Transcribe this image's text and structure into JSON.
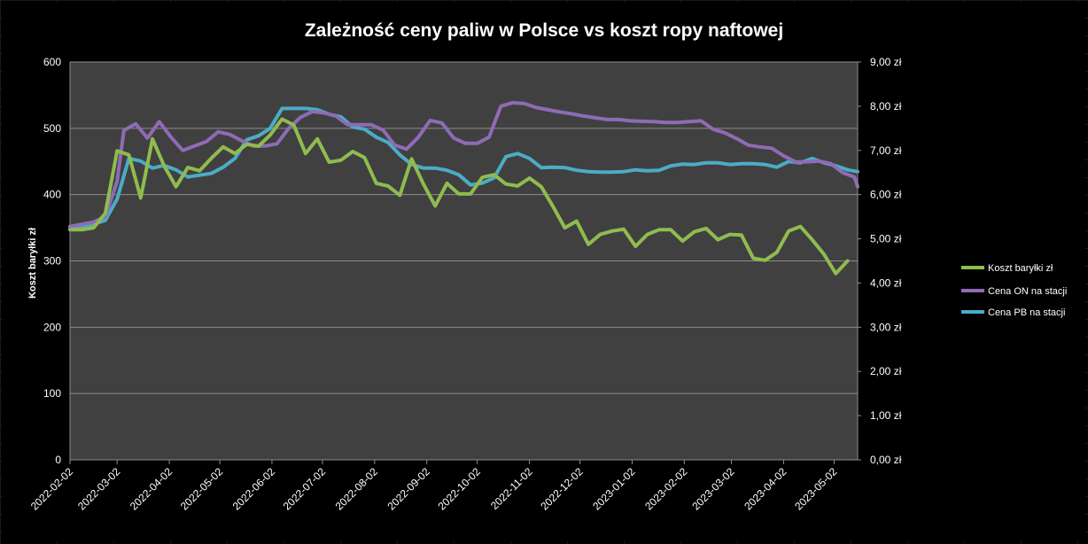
{
  "colors": {
    "plot_background": "#404040",
    "gridline": "#8c8c8c",
    "text": "#ffffff",
    "series_brent": "#8fbc4f",
    "series_on": "#8e6bb5",
    "series_pb": "#4bacc6"
  },
  "chart_data": {
    "type": "line",
    "title": "Zależność ceny paliw w Polsce vs koszt ropy naftowej",
    "ylabel_left": "Koszt baryłki zł",
    "ylim_left": [
      0,
      600
    ],
    "yticks_left": [
      "0",
      "100",
      "200",
      "300",
      "400",
      "500",
      "600"
    ],
    "ylim_right": [
      0,
      9
    ],
    "yticks_right": [
      "0,00 zł",
      "1,00 zł",
      "2,00 zł",
      "3,00 zł",
      "4,00 zł",
      "5,00 zł",
      "6,00 zł",
      "7,00 zł",
      "8,00 zł",
      "9,00 zł"
    ],
    "x_start": "2022-02-02",
    "x_end": "2023-05-16",
    "x_ticks": [
      "2022-02-02",
      "2022-03-02",
      "2022-04-02",
      "2022-05-02",
      "2022-06-02",
      "2022-07-02",
      "2022-08-02",
      "2022-09-02",
      "2022-10-02",
      "2022-11-02",
      "2022-12-02",
      "2023-01-02",
      "2023-02-02",
      "2023-03-02",
      "2023-04-02",
      "2023-05-02"
    ],
    "legend_position": "right",
    "grid": true,
    "series": [
      {
        "name": "Koszt baryłki zł",
        "axis": "left",
        "points": [
          [
            "2022-02-02",
            347
          ],
          [
            "2022-02-09",
            347
          ],
          [
            "2022-02-16",
            350
          ],
          [
            "2022-02-23",
            372
          ],
          [
            "2022-03-02",
            466
          ],
          [
            "2022-03-09",
            460
          ],
          [
            "2022-03-16",
            395
          ],
          [
            "2022-03-23",
            484
          ],
          [
            "2022-03-30",
            443
          ],
          [
            "2022-04-06",
            412
          ],
          [
            "2022-04-13",
            441
          ],
          [
            "2022-04-20",
            436
          ],
          [
            "2022-04-27",
            455
          ],
          [
            "2022-05-04",
            472
          ],
          [
            "2022-05-11",
            462
          ],
          [
            "2022-05-18",
            476
          ],
          [
            "2022-05-25",
            473
          ],
          [
            "2022-06-01",
            490
          ],
          [
            "2022-06-08",
            514
          ],
          [
            "2022-06-15",
            505
          ],
          [
            "2022-06-22",
            462
          ],
          [
            "2022-06-29",
            484
          ],
          [
            "2022-07-06",
            449
          ],
          [
            "2022-07-13",
            452
          ],
          [
            "2022-07-20",
            465
          ],
          [
            "2022-07-27",
            456
          ],
          [
            "2022-08-03",
            417
          ],
          [
            "2022-08-10",
            413
          ],
          [
            "2022-08-17",
            399
          ],
          [
            "2022-08-24",
            454
          ],
          [
            "2022-08-31",
            416
          ],
          [
            "2022-09-07",
            383
          ],
          [
            "2022-09-14",
            417
          ],
          [
            "2022-09-21",
            401
          ],
          [
            "2022-09-28",
            401
          ],
          [
            "2022-10-05",
            426
          ],
          [
            "2022-10-12",
            430
          ],
          [
            "2022-10-19",
            416
          ],
          [
            "2022-10-26",
            413
          ],
          [
            "2022-11-02",
            425
          ],
          [
            "2022-11-09",
            412
          ],
          [
            "2022-11-16",
            382
          ],
          [
            "2022-11-23",
            350
          ],
          [
            "2022-11-30",
            360
          ],
          [
            "2022-12-07",
            325
          ],
          [
            "2022-12-14",
            340
          ],
          [
            "2022-12-21",
            345
          ],
          [
            "2022-12-28",
            348
          ],
          [
            "2023-01-04",
            322
          ],
          [
            "2023-01-11",
            340
          ],
          [
            "2023-01-18",
            347
          ],
          [
            "2023-01-25",
            347
          ],
          [
            "2023-02-01",
            330
          ],
          [
            "2023-02-08",
            344
          ],
          [
            "2023-02-15",
            349
          ],
          [
            "2023-02-22",
            332
          ],
          [
            "2023-03-01",
            340
          ],
          [
            "2023-03-08",
            339
          ],
          [
            "2023-03-15",
            304
          ],
          [
            "2023-03-22",
            301
          ],
          [
            "2023-03-29",
            313
          ],
          [
            "2023-04-05",
            345
          ],
          [
            "2023-04-12",
            352
          ],
          [
            "2023-04-19",
            332
          ],
          [
            "2023-04-26",
            310
          ],
          [
            "2023-05-03",
            281
          ],
          [
            "2023-05-10",
            300
          ]
        ]
      },
      {
        "name": "Cena ON na stacji",
        "axis": "right",
        "points": [
          [
            "2022-02-02",
            5.28
          ],
          [
            "2022-02-09",
            5.33
          ],
          [
            "2022-02-16",
            5.38
          ],
          [
            "2022-02-23",
            5.5
          ],
          [
            "2022-03-02",
            6.3
          ],
          [
            "2022-03-06",
            7.45
          ],
          [
            "2022-03-13",
            7.6
          ],
          [
            "2022-03-20",
            7.28
          ],
          [
            "2022-03-27",
            7.65
          ],
          [
            "2022-04-03",
            7.3
          ],
          [
            "2022-04-10",
            7.0
          ],
          [
            "2022-04-17",
            7.1
          ],
          [
            "2022-04-24",
            7.2
          ],
          [
            "2022-05-01",
            7.42
          ],
          [
            "2022-05-08",
            7.36
          ],
          [
            "2022-05-15",
            7.22
          ],
          [
            "2022-05-22",
            7.1
          ],
          [
            "2022-05-29",
            7.1
          ],
          [
            "2022-06-05",
            7.15
          ],
          [
            "2022-06-12",
            7.5
          ],
          [
            "2022-06-19",
            7.75
          ],
          [
            "2022-06-26",
            7.88
          ],
          [
            "2022-07-03",
            7.85
          ],
          [
            "2022-07-10",
            7.78
          ],
          [
            "2022-07-17",
            7.58
          ],
          [
            "2022-07-24",
            7.58
          ],
          [
            "2022-07-31",
            7.58
          ],
          [
            "2022-08-07",
            7.46
          ],
          [
            "2022-08-14",
            7.12
          ],
          [
            "2022-08-21",
            7.03
          ],
          [
            "2022-08-28",
            7.3
          ],
          [
            "2022-09-04",
            7.68
          ],
          [
            "2022-09-11",
            7.62
          ],
          [
            "2022-09-18",
            7.28
          ],
          [
            "2022-09-25",
            7.16
          ],
          [
            "2022-10-02",
            7.16
          ],
          [
            "2022-10-09",
            7.3
          ],
          [
            "2022-10-16",
            8.0
          ],
          [
            "2022-10-23",
            8.08
          ],
          [
            "2022-10-30",
            8.06
          ],
          [
            "2022-11-06",
            7.97
          ],
          [
            "2022-11-13",
            7.92
          ],
          [
            "2022-11-20",
            7.87
          ],
          [
            "2022-11-27",
            7.83
          ],
          [
            "2022-12-04",
            7.78
          ],
          [
            "2022-12-11",
            7.74
          ],
          [
            "2022-12-18",
            7.7
          ],
          [
            "2022-12-25",
            7.7
          ],
          [
            "2023-01-01",
            7.67
          ],
          [
            "2023-01-08",
            7.66
          ],
          [
            "2023-01-15",
            7.65
          ],
          [
            "2023-01-22",
            7.63
          ],
          [
            "2023-01-29",
            7.63
          ],
          [
            "2023-02-05",
            7.65
          ],
          [
            "2023-02-12",
            7.67
          ],
          [
            "2023-02-19",
            7.48
          ],
          [
            "2023-02-26",
            7.4
          ],
          [
            "2023-03-05",
            7.27
          ],
          [
            "2023-03-12",
            7.12
          ],
          [
            "2023-03-19",
            7.08
          ],
          [
            "2023-03-26",
            7.05
          ],
          [
            "2023-04-02",
            6.88
          ],
          [
            "2023-04-09",
            6.74
          ],
          [
            "2023-04-16",
            6.74
          ],
          [
            "2023-04-23",
            6.76
          ],
          [
            "2023-04-30",
            6.7
          ],
          [
            "2023-05-07",
            6.5
          ],
          [
            "2023-05-14",
            6.4
          ],
          [
            "2023-05-16",
            6.18
          ]
        ]
      },
      {
        "name": "Cena PB na stacji",
        "axis": "right",
        "points": [
          [
            "2022-02-02",
            5.22
          ],
          [
            "2022-02-09",
            5.27
          ],
          [
            "2022-02-16",
            5.33
          ],
          [
            "2022-02-23",
            5.42
          ],
          [
            "2022-03-02",
            5.9
          ],
          [
            "2022-03-09",
            6.82
          ],
          [
            "2022-03-16",
            6.76
          ],
          [
            "2022-03-23",
            6.6
          ],
          [
            "2022-03-30",
            6.66
          ],
          [
            "2022-04-06",
            6.56
          ],
          [
            "2022-04-13",
            6.4
          ],
          [
            "2022-04-20",
            6.44
          ],
          [
            "2022-04-27",
            6.48
          ],
          [
            "2022-05-04",
            6.62
          ],
          [
            "2022-05-11",
            6.82
          ],
          [
            "2022-05-18",
            7.24
          ],
          [
            "2022-05-25",
            7.33
          ],
          [
            "2022-06-01",
            7.5
          ],
          [
            "2022-06-08",
            7.95
          ],
          [
            "2022-06-15",
            7.95
          ],
          [
            "2022-06-22",
            7.95
          ],
          [
            "2022-06-29",
            7.92
          ],
          [
            "2022-07-06",
            7.82
          ],
          [
            "2022-07-13",
            7.76
          ],
          [
            "2022-07-20",
            7.53
          ],
          [
            "2022-07-27",
            7.48
          ],
          [
            "2022-08-03",
            7.3
          ],
          [
            "2022-08-10",
            7.18
          ],
          [
            "2022-08-17",
            6.9
          ],
          [
            "2022-08-24",
            6.68
          ],
          [
            "2022-08-31",
            6.6
          ],
          [
            "2022-09-07",
            6.6
          ],
          [
            "2022-09-14",
            6.55
          ],
          [
            "2022-09-21",
            6.45
          ],
          [
            "2022-09-28",
            6.22
          ],
          [
            "2022-10-05",
            6.26
          ],
          [
            "2022-10-12",
            6.38
          ],
          [
            "2022-10-19",
            6.86
          ],
          [
            "2022-10-26",
            6.93
          ],
          [
            "2022-11-02",
            6.82
          ],
          [
            "2022-11-09",
            6.61
          ],
          [
            "2022-11-16",
            6.62
          ],
          [
            "2022-11-23",
            6.61
          ],
          [
            "2022-11-30",
            6.55
          ],
          [
            "2022-12-07",
            6.52
          ],
          [
            "2022-12-14",
            6.51
          ],
          [
            "2022-12-21",
            6.51
          ],
          [
            "2022-12-28",
            6.52
          ],
          [
            "2023-01-04",
            6.56
          ],
          [
            "2023-01-11",
            6.54
          ],
          [
            "2023-01-18",
            6.55
          ],
          [
            "2023-01-25",
            6.65
          ],
          [
            "2023-02-01",
            6.69
          ],
          [
            "2023-02-08",
            6.68
          ],
          [
            "2023-02-15",
            6.72
          ],
          [
            "2023-02-22",
            6.72
          ],
          [
            "2023-03-01",
            6.68
          ],
          [
            "2023-03-08",
            6.7
          ],
          [
            "2023-03-15",
            6.7
          ],
          [
            "2023-03-22",
            6.68
          ],
          [
            "2023-03-29",
            6.62
          ],
          [
            "2023-04-05",
            6.75
          ],
          [
            "2023-04-12",
            6.72
          ],
          [
            "2023-04-19",
            6.82
          ],
          [
            "2023-04-26",
            6.72
          ],
          [
            "2023-05-03",
            6.65
          ],
          [
            "2023-05-10",
            6.56
          ],
          [
            "2023-05-16",
            6.52
          ]
        ]
      }
    ]
  }
}
